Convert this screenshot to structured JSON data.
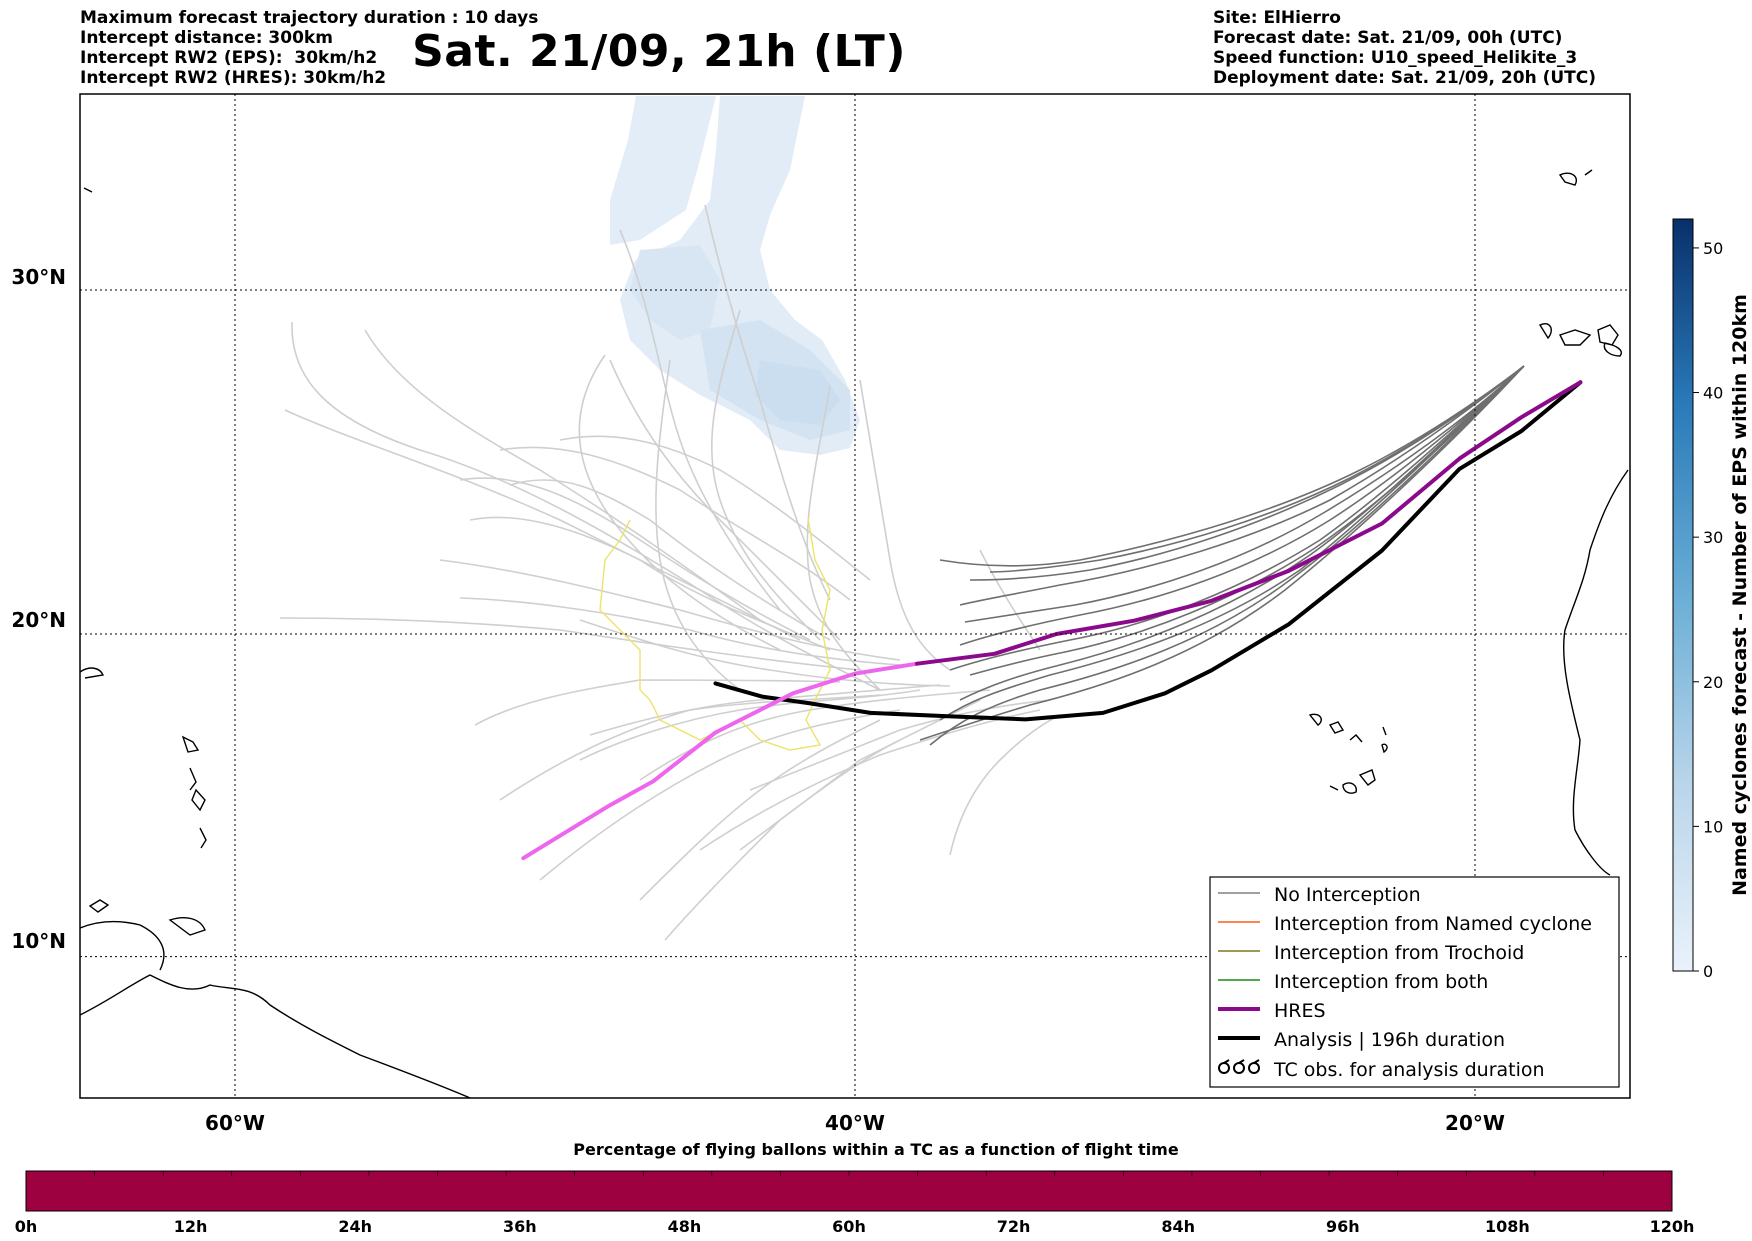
{
  "header_left": [
    "Maximum forecast trajectory duration : 10 days",
    "Intercept distance: 300km",
    "Intercept RW2 (EPS):  30km/h2",
    "Intercept RW2 (HRES): 30km/h2"
  ],
  "header_right": [
    "Site: ElHierro",
    "Forecast date: Sat. 21/09, 00h (UTC)",
    "Speed function: U10_speed_Helikite_3",
    "Deployment date: Sat. 21/09, 20h (UTC)"
  ],
  "title": "Sat. 21/09, 21h (LT)",
  "map": {
    "lat_labels": [
      "30°N",
      "20°N",
      "10°N"
    ],
    "lon_labels": [
      "60°W",
      "40°W",
      "20°W"
    ],
    "extent": {
      "lon_min": -65,
      "lon_max": -15,
      "lat_min": 5.5,
      "lat_max": 35.3
    },
    "gridlines": {
      "lats": [
        30,
        20,
        10
      ],
      "lons": [
        -60,
        -40,
        -20
      ],
      "style": "dotted"
    }
  },
  "legend": {
    "placement": "lower-right",
    "entries": [
      {
        "label": "No Interception",
        "color": "#808080",
        "style": "thin"
      },
      {
        "label": "Interception from Named cyclone",
        "color": "#ff5a1a",
        "style": "thin"
      },
      {
        "label": "Interception from Trochoid",
        "color": "#7a7a1a",
        "style": "thin"
      },
      {
        "label": "Interception from both",
        "color": "#1a8a1a",
        "style": "thin"
      },
      {
        "label": "HRES",
        "color": "#8b0a8b",
        "style": "thick"
      },
      {
        "label": "Analysis | 196h duration",
        "color": "#000000",
        "style": "thick"
      },
      {
        "label": "TC obs. for analysis duration",
        "color": "#000000",
        "style": "symbol"
      }
    ]
  },
  "colorbar_right": {
    "label": "Named cyclones forecast - Number of EPS within 120km",
    "min": 0,
    "max": 52,
    "ticks": [
      "0",
      "10",
      "20",
      "30",
      "40",
      "50"
    ],
    "tick_values": [
      0,
      10,
      20,
      30,
      40,
      50
    ],
    "colors": [
      "#e9f2fb",
      "#08306b"
    ]
  },
  "colorbar_bottom": {
    "title": "Percentage of flying ballons within a TC as a function of flight time",
    "ticks": [
      "0h",
      "12h",
      "24h",
      "36h",
      "48h",
      "60h",
      "72h",
      "84h",
      "96h",
      "108h",
      "120h"
    ],
    "fill_color": "#9e0140",
    "segments": 24
  },
  "chart_data": {
    "type": "line",
    "series": [
      {
        "name": "HRES",
        "color": "#8b0a8b",
        "points": [
          [
            -16.6,
            27.4
          ],
          [
            -18.5,
            26.4
          ],
          [
            -20.5,
            25.2
          ],
          [
            -23.0,
            23.3
          ],
          [
            -26.0,
            21.9
          ],
          [
            -28.5,
            21.0
          ],
          [
            -31.0,
            20.4
          ],
          [
            -33.5,
            20.0
          ],
          [
            -35.5,
            19.4
          ],
          [
            -38.0,
            19.1
          ]
        ]
      },
      {
        "name": "HRES (early segment)",
        "color": "#ee66ee",
        "points": [
          [
            -38.0,
            19.1
          ],
          [
            -40.0,
            18.8
          ],
          [
            -42.0,
            18.2
          ],
          [
            -44.5,
            17.0
          ],
          [
            -46.5,
            15.5
          ],
          [
            -48.0,
            14.7
          ],
          [
            -50.7,
            13.1
          ]
        ]
      },
      {
        "name": "Analysis | 196h duration",
        "color": "#000000",
        "points": [
          [
            -16.6,
            27.4
          ],
          [
            -18.5,
            26.0
          ],
          [
            -20.5,
            24.9
          ],
          [
            -23.0,
            22.5
          ],
          [
            -26.0,
            20.3
          ],
          [
            -28.5,
            18.9
          ],
          [
            -30.0,
            18.2
          ],
          [
            -32.0,
            17.6
          ],
          [
            -34.5,
            17.4
          ],
          [
            -37.0,
            17.5
          ],
          [
            -39.5,
            17.6
          ],
          [
            -41.5,
            17.9
          ],
          [
            -43.0,
            18.1
          ],
          [
            -44.5,
            18.5
          ]
        ]
      }
    ]
  }
}
